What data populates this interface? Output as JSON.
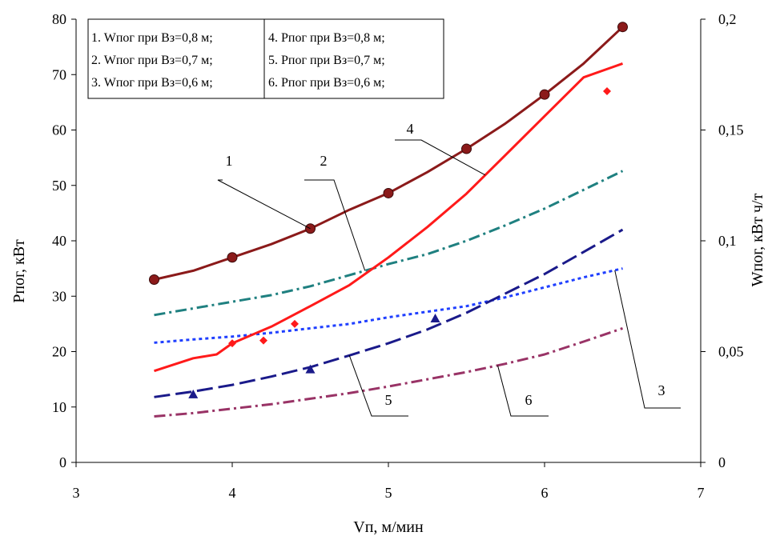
{
  "chart_data": {
    "type": "line",
    "xlabel": "Vп, м/мин",
    "ylabel_left": "Pпог, кВт",
    "ylabel_right": "Wпог, кВт ч/т",
    "xlim": [
      3,
      7
    ],
    "ylim_left": [
      0,
      80
    ],
    "ylim_right": [
      0,
      0.2
    ],
    "x_ticks": [
      "3",
      "4",
      "5",
      "6",
      "7"
    ],
    "y_left_ticks": [
      "0",
      "10",
      "20",
      "30",
      "40",
      "50",
      "60",
      "70",
      "80"
    ],
    "y_right_ticks": [
      "0",
      "0,05",
      "0,1",
      "0,15",
      "0,2"
    ],
    "grid": false,
    "legend": {
      "placement": "top-left",
      "entries": [
        "1. Wпог при Вз=0,8 м;",
        "2. Wпог при Вз=0,7 м;",
        "3. Wпог при Вз=0,6 м;",
        "4. Pпог при Вз=0,8 м;",
        "5. Pпог при Вз=0,7 м;",
        "6. Pпог при Вз=0,6 м;"
      ]
    },
    "series": [
      {
        "name": "1. Wпог при Вз=0,8 м;",
        "callout": "1",
        "axis": "right",
        "color": "#8b1a1a",
        "style": "solid",
        "x": [
          3.5,
          3.75,
          4.0,
          4.25,
          4.5,
          4.75,
          5.0,
          5.25,
          5.5,
          5.75,
          6.0,
          6.25,
          6.5
        ],
        "y": [
          0.0825,
          0.0865,
          0.0925,
          0.0985,
          0.1055,
          0.114,
          0.1215,
          0.131,
          0.1415,
          0.153,
          0.166,
          0.18,
          0.1965
        ],
        "markers": {
          "shape": "circle",
          "x": [
            3.5,
            4.0,
            4.5,
            5.0,
            5.5,
            6.0,
            6.5
          ],
          "y": [
            0.0825,
            0.0925,
            0.1055,
            0.1215,
            0.1415,
            0.166,
            0.1965
          ]
        }
      },
      {
        "name": "2. Wпог при Вз=0,7 м;",
        "callout": "2",
        "axis": "right",
        "color": "#1f8080",
        "style": "dashdot",
        "x": [
          3.5,
          3.75,
          4.0,
          4.25,
          4.5,
          4.75,
          5.0,
          5.25,
          5.5,
          5.75,
          6.0,
          6.25,
          6.5
        ],
        "y": [
          0.0665,
          0.0695,
          0.0725,
          0.0755,
          0.0795,
          0.0845,
          0.0895,
          0.094,
          0.1,
          0.107,
          0.1145,
          0.123,
          0.1315
        ]
      },
      {
        "name": "3. Wпог при Вз=0,6 м;",
        "callout": "3",
        "axis": "right",
        "color": "#1f3fff",
        "style": "dotted",
        "x": [
          3.5,
          3.75,
          4.0,
          4.25,
          4.5,
          4.75,
          5.0,
          5.25,
          5.5,
          5.75,
          6.0,
          6.25,
          6.5
        ],
        "y": [
          0.054,
          0.0555,
          0.0568,
          0.0585,
          0.0605,
          0.0625,
          0.0655,
          0.068,
          0.0705,
          0.0745,
          0.079,
          0.0835,
          0.0875
        ]
      },
      {
        "name": "4. Pпог при Вз=0,8 м;",
        "callout": "4",
        "axis": "left",
        "color": "#ff1a1a",
        "style": "solid",
        "x": [
          3.5,
          3.75,
          3.9,
          4.0,
          4.25,
          4.5,
          4.75,
          5.0,
          5.25,
          5.5,
          5.75,
          6.0,
          6.25,
          6.5
        ],
        "y": [
          16.5,
          18.8,
          19.5,
          21.5,
          24.5,
          28.2,
          32.0,
          37.0,
          42.5,
          48.5,
          55.5,
          62.5,
          69.5,
          72.0
        ],
        "markers": {
          "shape": "diamond",
          "x": [
            4.0,
            4.2,
            4.4,
            6.4
          ],
          "y": [
            21.5,
            22.0,
            25.0,
            67.0
          ]
        }
      },
      {
        "name": "5. Pпог при Вз=0,7 м;",
        "callout": "5",
        "axis": "left",
        "color": "#1a1a8a",
        "style": "longdash",
        "x": [
          3.5,
          3.75,
          4.0,
          4.25,
          4.5,
          4.75,
          5.0,
          5.25,
          5.5,
          5.75,
          6.0,
          6.25,
          6.5
        ],
        "y": [
          11.8,
          12.8,
          14.0,
          15.5,
          17.2,
          19.3,
          21.5,
          24.0,
          27.0,
          30.5,
          34.0,
          38.0,
          42.0
        ],
        "markers": {
          "shape": "triangle",
          "x": [
            3.75,
            4.5,
            5.3
          ],
          "y": [
            12.3,
            16.8,
            26.0
          ]
        }
      },
      {
        "name": "6. Pпог при Вз=0,6 м;",
        "callout": "6",
        "axis": "left",
        "color": "#993366",
        "style": "dashdot",
        "x": [
          3.5,
          3.75,
          4.0,
          4.25,
          4.5,
          4.75,
          5.0,
          5.25,
          5.5,
          5.75,
          6.0,
          6.25,
          6.5
        ],
        "y": [
          8.3,
          8.9,
          9.7,
          10.5,
          11.5,
          12.5,
          13.7,
          15.0,
          16.3,
          17.8,
          19.5,
          21.8,
          24.2
        ]
      }
    ],
    "callouts": [
      {
        "label": "1",
        "series": 0,
        "at_x": 4.5
      },
      {
        "label": "2",
        "series": 1,
        "at_x": 4.85
      },
      {
        "label": "3",
        "series": 2,
        "at_x": 6.45
      },
      {
        "label": "4",
        "series": 3,
        "at_x": 5.62
      },
      {
        "label": "5",
        "series": 4,
        "at_x": 4.75
      },
      {
        "label": "6",
        "series": 5,
        "at_x": 5.7
      }
    ]
  }
}
